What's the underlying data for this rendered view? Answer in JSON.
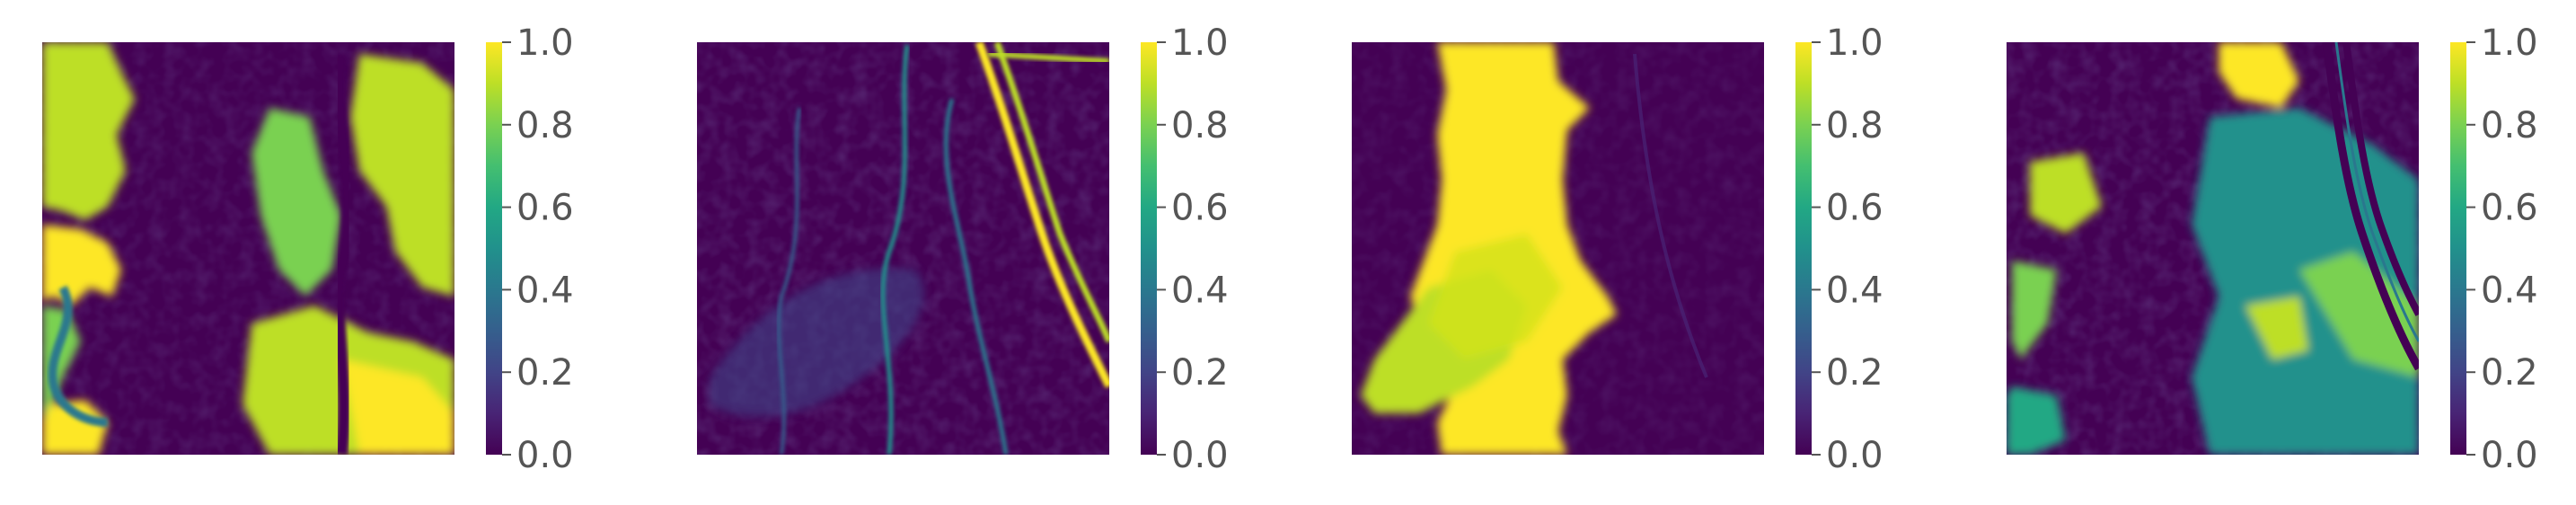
{
  "chart_data": [
    {
      "type": "heatmap",
      "title": "",
      "colormap": "viridis",
      "colorbar": {
        "range": [
          0,
          1
        ],
        "ticks": [
          0.0,
          0.2,
          0.4,
          0.6,
          0.8,
          1.0
        ],
        "tick_labels": [
          "0.0",
          "0.2",
          "0.4",
          "0.6",
          "0.8",
          "1.0"
        ]
      },
      "axes_visible": false,
      "grid": false,
      "description_of_values": {
        "background": 0.0,
        "features": [
          {
            "region": "left edge blobs",
            "value": 0.9
          },
          {
            "region": "left-center sinuous channel",
            "value": 0.45
          },
          {
            "region": "right clusters",
            "value": 0.8
          }
        ]
      }
    },
    {
      "type": "heatmap",
      "title": "",
      "colormap": "viridis",
      "colorbar": {
        "range": [
          0,
          1
        ],
        "ticks": [
          0.0,
          0.2,
          0.4,
          0.6,
          0.8,
          1.0
        ],
        "tick_labels": [
          "0.0",
          "0.2",
          "0.4",
          "0.6",
          "0.8",
          "1.0"
        ]
      },
      "axes_visible": false,
      "grid": false,
      "description_of_values": {
        "background": 0.0,
        "features": [
          {
            "region": "curved double road (upper right to lower right)",
            "value": 0.9
          },
          {
            "region": "thin curved lines (center)",
            "value": 0.5
          },
          {
            "region": "diffuse lower-left area",
            "value": 0.2
          }
        ]
      }
    },
    {
      "type": "heatmap",
      "title": "",
      "colormap": "viridis",
      "colorbar": {
        "range": [
          0,
          1
        ],
        "ticks": [
          0.0,
          0.2,
          0.4,
          0.6,
          0.8,
          1.0
        ],
        "tick_labels": [
          "0.0",
          "0.2",
          "0.4",
          "0.6",
          "0.8",
          "1.0"
        ]
      },
      "axes_visible": false,
      "grid": false,
      "description_of_values": {
        "background": 0.0,
        "features": [
          {
            "region": "central vertical river body",
            "value": 0.95
          },
          {
            "region": "left lobe of river",
            "value": 0.85
          }
        ]
      }
    },
    {
      "type": "heatmap",
      "title": "",
      "colormap": "viridis",
      "colorbar": {
        "range": [
          0,
          1
        ],
        "ticks": [
          0.0,
          0.2,
          0.4,
          0.6,
          0.8,
          1.0
        ],
        "tick_labels": [
          "0.0",
          "0.2",
          "0.4",
          "0.6",
          "0.8",
          "1.0"
        ]
      },
      "axes_visible": false,
      "grid": false,
      "description_of_values": {
        "background": 0.0,
        "features": [
          {
            "region": "top-center bright patch",
            "value": 0.95
          },
          {
            "region": "dark road lines on right",
            "value": 0.05
          },
          {
            "region": "left scattered patches",
            "value": 0.6
          },
          {
            "region": "right textured area",
            "value": 0.5
          }
        ]
      }
    }
  ]
}
